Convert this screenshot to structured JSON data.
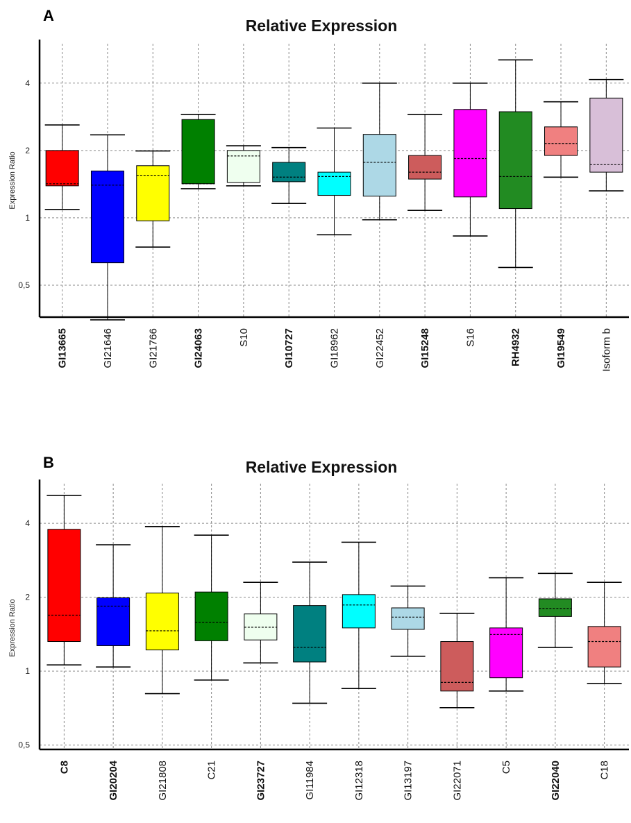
{
  "chart_data": [
    {
      "panel": "A",
      "type": "box",
      "title": "Relative Expression",
      "ylabel": "Expression Ratio",
      "yscale": "log2",
      "ylim": [
        0.36,
        6.0
      ],
      "yticks": [
        0.5,
        1,
        2,
        4
      ],
      "ytick_labels": [
        "0,5",
        "1",
        "2",
        "4"
      ],
      "grid": true,
      "categories": [
        "GI13665",
        "GI21646",
        "GI21766",
        "GI24063",
        "S10",
        "GI10727",
        "GI18962",
        "GI22452",
        "GI15248",
        "S16",
        "RH4932",
        "GI19549",
        "Isoform b"
      ],
      "bold_categories": [
        true,
        false,
        false,
        true,
        false,
        true,
        false,
        false,
        true,
        false,
        true,
        true,
        false
      ],
      "colors": [
        "#ff0000",
        "#0000ff",
        "#ffff00",
        "#008000",
        "#efffef",
        "#008080",
        "#00ffff",
        "#add8e6",
        "#cd5c5c",
        "#ff00ff",
        "#228b22",
        "#f08080",
        "#d8bfd8"
      ],
      "boxes": [
        {
          "min": 1.09,
          "q1": 1.39,
          "median": 1.42,
          "q3": 2.0,
          "max": 2.6
        },
        {
          "min": 0.35,
          "q1": 0.63,
          "median": 1.4,
          "q3": 1.62,
          "max": 2.35
        },
        {
          "min": 0.74,
          "q1": 0.97,
          "median": 1.55,
          "q3": 1.71,
          "max": 1.99
        },
        {
          "min": 1.35,
          "q1": 1.42,
          "median": 1.42,
          "q3": 2.75,
          "max": 2.9
        },
        {
          "min": 1.39,
          "q1": 1.44,
          "median": 1.89,
          "q3": 2.0,
          "max": 2.1
        },
        {
          "min": 1.16,
          "q1": 1.45,
          "median": 1.52,
          "q3": 1.77,
          "max": 2.06
        },
        {
          "min": 0.84,
          "q1": 1.26,
          "median": 1.53,
          "q3": 1.6,
          "max": 2.52
        },
        {
          "min": 0.98,
          "q1": 1.25,
          "median": 1.77,
          "q3": 2.36,
          "max": 4.0
        },
        {
          "min": 1.08,
          "q1": 1.49,
          "median": 1.6,
          "q3": 1.9,
          "max": 2.9
        },
        {
          "min": 0.83,
          "q1": 1.24,
          "median": 1.84,
          "q3": 3.05,
          "max": 4.0
        },
        {
          "min": 0.6,
          "q1": 1.1,
          "median": 1.53,
          "q3": 2.98,
          "max": 5.08
        },
        {
          "min": 1.52,
          "q1": 1.9,
          "median": 2.15,
          "q3": 2.55,
          "max": 3.3
        },
        {
          "min": 1.32,
          "q1": 1.6,
          "median": 1.73,
          "q3": 3.43,
          "max": 4.15
        }
      ]
    },
    {
      "panel": "B",
      "type": "box",
      "title": "Relative Expression",
      "ylabel": "Expression Ratio",
      "yscale": "log2",
      "ylim": [
        0.48,
        5.8
      ],
      "yticks": [
        0.5,
        1,
        2,
        4
      ],
      "ytick_labels": [
        "0,5",
        "1",
        "2",
        "4"
      ],
      "grid": true,
      "categories": [
        "C8",
        "GI20204",
        "GI21808",
        "C21",
        "GI23727",
        "GI11984",
        "GI12318",
        "GI13197",
        "GI22071",
        "C5",
        "GI22040",
        "C18"
      ],
      "bold_categories": [
        true,
        true,
        false,
        false,
        true,
        false,
        false,
        false,
        false,
        false,
        true,
        false
      ],
      "colors": [
        "#ff0000",
        "#0000ff",
        "#ffff00",
        "#008000",
        "#efffef",
        "#008080",
        "#00ffff",
        "#add8e6",
        "#cd5c5c",
        "#ff00ff",
        "#228b22",
        "#f08080"
      ],
      "boxes": [
        {
          "min": 1.06,
          "q1": 1.32,
          "median": 1.69,
          "q3": 3.78,
          "max": 5.2
        },
        {
          "min": 1.04,
          "q1": 1.27,
          "median": 1.84,
          "q3": 1.99,
          "max": 3.27
        },
        {
          "min": 0.81,
          "q1": 1.22,
          "median": 1.46,
          "q3": 2.08,
          "max": 3.88
        },
        {
          "min": 0.92,
          "q1": 1.33,
          "median": 1.58,
          "q3": 2.1,
          "max": 3.58
        },
        {
          "min": 1.08,
          "q1": 1.34,
          "median": 1.51,
          "q3": 1.71,
          "max": 2.3
        },
        {
          "min": 0.74,
          "q1": 1.09,
          "median": 1.25,
          "q3": 1.85,
          "max": 2.78
        },
        {
          "min": 0.85,
          "q1": 1.5,
          "median": 1.86,
          "q3": 2.05,
          "max": 3.35
        },
        {
          "min": 1.15,
          "q1": 1.48,
          "median": 1.66,
          "q3": 1.81,
          "max": 2.22
        },
        {
          "min": 0.71,
          "q1": 0.83,
          "median": 0.9,
          "q3": 1.32,
          "max": 1.72
        },
        {
          "min": 0.83,
          "q1": 0.94,
          "median": 1.41,
          "q3": 1.5,
          "max": 2.4
        },
        {
          "min": 1.25,
          "q1": 1.67,
          "median": 1.8,
          "q3": 1.97,
          "max": 2.5
        },
        {
          "min": 0.89,
          "q1": 1.04,
          "median": 1.32,
          "q3": 1.52,
          "max": 2.3
        }
      ]
    }
  ]
}
